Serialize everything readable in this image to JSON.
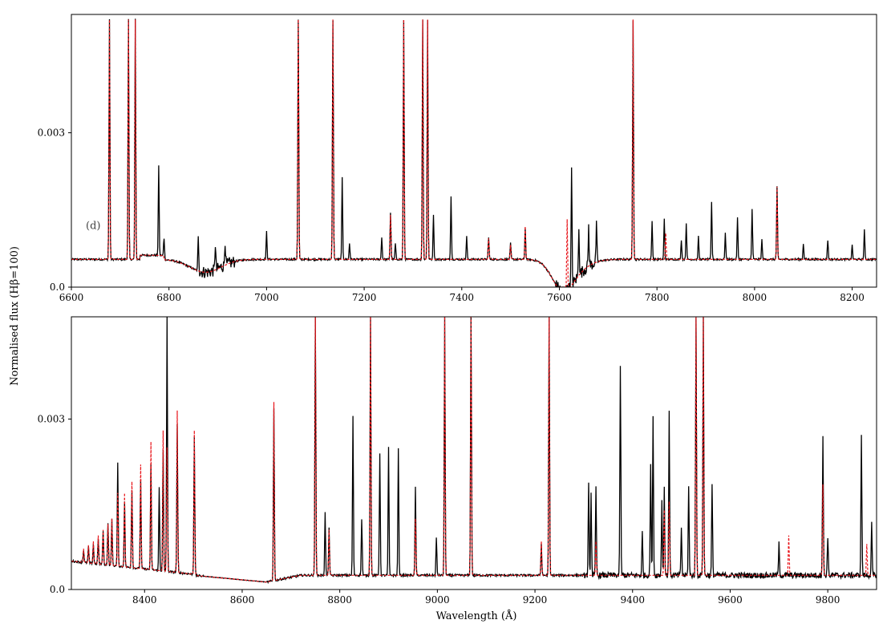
{
  "figure": {
    "ylabel": "Normalised flux (Hβ=100)",
    "xlabel": "Wavelength (Å)"
  },
  "colors": {
    "observed": "#000000",
    "model": "#e8141a",
    "axis": "#000000"
  },
  "chart_data": [
    {
      "type": "line",
      "panel": "top",
      "annotation": "(d)",
      "xlim": [
        6600,
        8250
      ],
      "ylim": [
        0.0,
        0.0053
      ],
      "xticks": [
        6600,
        6800,
        7000,
        7200,
        7400,
        7600,
        7800,
        8000,
        8200
      ],
      "yticks": [
        0.0,
        0.003
      ],
      "ytick_labels": [
        "0.0",
        "0.003"
      ],
      "continuum": 0.00054,
      "absorption_bands": [
        {
          "center": 6875,
          "width": 45,
          "depth": 0.00025
        },
        {
          "center": 7605,
          "width": 30,
          "depth": 0.00048
        },
        {
          "center": 7630,
          "width": 40,
          "depth": 0.0002
        }
      ],
      "series": [
        {
          "role": "observed",
          "lines": [
            {
              "x": 6678,
              "y": 0.0052
            },
            {
              "x": 6717,
              "y": 0.0052
            },
            {
              "x": 6731,
              "y": 0.0052
            },
            {
              "x": 6779,
              "y": 0.00235
            },
            {
              "x": 6790,
              "y": 0.00095
            },
            {
              "x": 6860,
              "y": 0.00098
            },
            {
              "x": 6895,
              "y": 0.00085
            },
            {
              "x": 6915,
              "y": 0.00092
            },
            {
              "x": 7000,
              "y": 0.00108
            },
            {
              "x": 7065,
              "y": 0.0052
            },
            {
              "x": 7136,
              "y": 0.0052
            },
            {
              "x": 7155,
              "y": 0.00212
            },
            {
              "x": 7170,
              "y": 0.00085
            },
            {
              "x": 7236,
              "y": 0.00098
            },
            {
              "x": 7254,
              "y": 0.00145
            },
            {
              "x": 7264,
              "y": 0.00085
            },
            {
              "x": 7281,
              "y": 0.0052
            },
            {
              "x": 7320,
              "y": 0.0052
            },
            {
              "x": 7330,
              "y": 0.0052
            },
            {
              "x": 7342,
              "y": 0.00142
            },
            {
              "x": 7378,
              "y": 0.00178
            },
            {
              "x": 7410,
              "y": 0.00098
            },
            {
              "x": 7455,
              "y": 0.00098
            },
            {
              "x": 7500,
              "y": 0.00085
            },
            {
              "x": 7530,
              "y": 0.00115
            },
            {
              "x": 7625,
              "y": 0.00225
            },
            {
              "x": 7640,
              "y": 0.00122
            },
            {
              "x": 7660,
              "y": 0.00118
            },
            {
              "x": 7676,
              "y": 0.00118
            },
            {
              "x": 7751,
              "y": 0.0052
            },
            {
              "x": 7790,
              "y": 0.00128
            },
            {
              "x": 7815,
              "y": 0.00132
            },
            {
              "x": 7850,
              "y": 0.00092
            },
            {
              "x": 7860,
              "y": 0.00125
            },
            {
              "x": 7885,
              "y": 0.00098
            },
            {
              "x": 7912,
              "y": 0.00165
            },
            {
              "x": 7940,
              "y": 0.00105
            },
            {
              "x": 7965,
              "y": 0.00135
            },
            {
              "x": 7995,
              "y": 0.00152
            },
            {
              "x": 8015,
              "y": 0.00092
            },
            {
              "x": 8046,
              "y": 0.00195
            },
            {
              "x": 8100,
              "y": 0.00085
            },
            {
              "x": 8150,
              "y": 0.00092
            },
            {
              "x": 8200,
              "y": 0.00082
            },
            {
              "x": 8225,
              "y": 0.00112
            }
          ]
        },
        {
          "role": "model",
          "lines": [
            {
              "x": 6678,
              "y": 0.0052
            },
            {
              "x": 6717,
              "y": 0.0052
            },
            {
              "x": 6731,
              "y": 0.0052
            },
            {
              "x": 7065,
              "y": 0.0052
            },
            {
              "x": 7136,
              "y": 0.0052
            },
            {
              "x": 7254,
              "y": 0.0014
            },
            {
              "x": 7281,
              "y": 0.0052
            },
            {
              "x": 7320,
              "y": 0.0052
            },
            {
              "x": 7330,
              "y": 0.0052
            },
            {
              "x": 7455,
              "y": 0.00095
            },
            {
              "x": 7500,
              "y": 0.00082
            },
            {
              "x": 7530,
              "y": 0.00118
            },
            {
              "x": 7616,
              "y": 0.00132
            },
            {
              "x": 7751,
              "y": 0.0052
            },
            {
              "x": 7818,
              "y": 0.00105
            },
            {
              "x": 8046,
              "y": 0.00195
            }
          ]
        }
      ]
    },
    {
      "type": "line",
      "panel": "bottom",
      "xlim": [
        8250,
        9900
      ],
      "ylim": [
        0.0,
        0.0048
      ],
      "xticks": [
        8400,
        8600,
        8800,
        9000,
        9200,
        9400,
        9600,
        9800
      ],
      "yticks": [
        0.0,
        0.003
      ],
      "ytick_labels": [
        "0.0",
        "0.003"
      ],
      "continuum": 0.00025,
      "series": [
        {
          "role": "observed",
          "lines": [
            {
              "x": 8275,
              "y": 0.0007
            },
            {
              "x": 8285,
              "y": 0.00075
            },
            {
              "x": 8295,
              "y": 0.0008
            },
            {
              "x": 8305,
              "y": 0.0009
            },
            {
              "x": 8315,
              "y": 0.00102
            },
            {
              "x": 8325,
              "y": 0.00118
            },
            {
              "x": 8333,
              "y": 0.00125
            },
            {
              "x": 8345,
              "y": 0.00225
            },
            {
              "x": 8359,
              "y": 0.00155
            },
            {
              "x": 8374,
              "y": 0.00175
            },
            {
              "x": 8392,
              "y": 0.00195
            },
            {
              "x": 8413,
              "y": 0.0022
            },
            {
              "x": 8430,
              "y": 0.0018
            },
            {
              "x": 8438,
              "y": 0.00245
            },
            {
              "x": 8446,
              "y": 0.0048
            },
            {
              "x": 8467,
              "y": 0.0029
            },
            {
              "x": 8502,
              "y": 0.0027
            },
            {
              "x": 8665,
              "y": 0.0032
            },
            {
              "x": 8750,
              "y": 0.0048
            },
            {
              "x": 8770,
              "y": 0.00135
            },
            {
              "x": 8778,
              "y": 0.0011
            },
            {
              "x": 8827,
              "y": 0.00305
            },
            {
              "x": 8845,
              "y": 0.00125
            },
            {
              "x": 8863,
              "y": 0.0048
            },
            {
              "x": 8882,
              "y": 0.0024
            },
            {
              "x": 8900,
              "y": 0.0025
            },
            {
              "x": 8920,
              "y": 0.0025
            },
            {
              "x": 8955,
              "y": 0.0018
            },
            {
              "x": 8998,
              "y": 0.0009
            },
            {
              "x": 9015,
              "y": 0.0048
            },
            {
              "x": 9069,
              "y": 0.0048
            },
            {
              "x": 9213,
              "y": 0.0008
            },
            {
              "x": 9229,
              "y": 0.0048
            },
            {
              "x": 9310,
              "y": 0.00185
            },
            {
              "x": 9315,
              "y": 0.0017
            },
            {
              "x": 9325,
              "y": 0.0018
            },
            {
              "x": 9375,
              "y": 0.0039
            },
            {
              "x": 9420,
              "y": 0.001
            },
            {
              "x": 9437,
              "y": 0.0022
            },
            {
              "x": 9442,
              "y": 0.0031
            },
            {
              "x": 9460,
              "y": 0.00155
            },
            {
              "x": 9465,
              "y": 0.0018
            },
            {
              "x": 9475,
              "y": 0.0031
            },
            {
              "x": 9500,
              "y": 0.0011
            },
            {
              "x": 9515,
              "y": 0.00185
            },
            {
              "x": 9530,
              "y": 0.0048
            },
            {
              "x": 9545,
              "y": 0.0048
            },
            {
              "x": 9563,
              "y": 0.00185
            },
            {
              "x": 9700,
              "y": 0.0008
            },
            {
              "x": 9790,
              "y": 0.0027
            },
            {
              "x": 9800,
              "y": 0.00095
            },
            {
              "x": 9869,
              "y": 0.00275
            },
            {
              "x": 9890,
              "y": 0.00115
            }
          ]
        },
        {
          "role": "model",
          "lines": [
            {
              "x": 8275,
              "y": 0.00072
            },
            {
              "x": 8285,
              "y": 0.00078
            },
            {
              "x": 8295,
              "y": 0.00085
            },
            {
              "x": 8305,
              "y": 0.00095
            },
            {
              "x": 8315,
              "y": 0.00105
            },
            {
              "x": 8325,
              "y": 0.00115
            },
            {
              "x": 8333,
              "y": 0.00125
            },
            {
              "x": 8345,
              "y": 0.0017
            },
            {
              "x": 8359,
              "y": 0.0017
            },
            {
              "x": 8374,
              "y": 0.0019
            },
            {
              "x": 8392,
              "y": 0.0022
            },
            {
              "x": 8413,
              "y": 0.0026
            },
            {
              "x": 8438,
              "y": 0.0028
            },
            {
              "x": 8446,
              "y": 0.0025
            },
            {
              "x": 8467,
              "y": 0.00315
            },
            {
              "x": 8502,
              "y": 0.0028
            },
            {
              "x": 8665,
              "y": 0.0033
            },
            {
              "x": 8750,
              "y": 0.0048
            },
            {
              "x": 8778,
              "y": 0.00105
            },
            {
              "x": 8863,
              "y": 0.0048
            },
            {
              "x": 8955,
              "y": 0.00125
            },
            {
              "x": 9015,
              "y": 0.0048
            },
            {
              "x": 9069,
              "y": 0.0048
            },
            {
              "x": 9213,
              "y": 0.00085
            },
            {
              "x": 9229,
              "y": 0.0048
            },
            {
              "x": 9325,
              "y": 0.00085
            },
            {
              "x": 9465,
              "y": 0.0014
            },
            {
              "x": 9475,
              "y": 0.00155
            },
            {
              "x": 9530,
              "y": 0.0048
            },
            {
              "x": 9545,
              "y": 0.0048
            },
            {
              "x": 9720,
              "y": 0.00095
            },
            {
              "x": 9790,
              "y": 0.00185
            },
            {
              "x": 9880,
              "y": 0.0008
            }
          ]
        }
      ]
    }
  ]
}
